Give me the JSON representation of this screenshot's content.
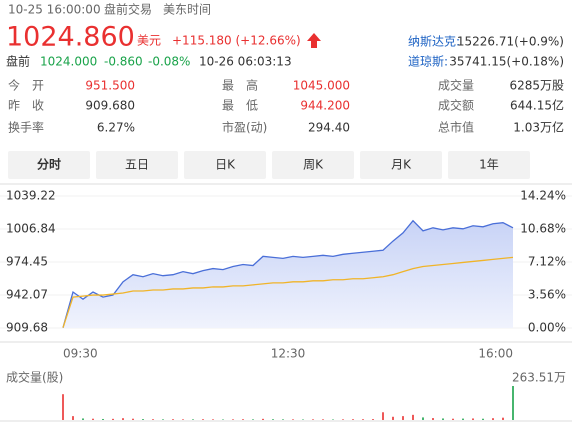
{
  "header": {
    "datetime": "10-25 16:00:00",
    "session": "盘前交易",
    "timezone": "美东时间"
  },
  "quote": {
    "price": "1024.860",
    "currency": "美元",
    "change": "+115.180 (+12.66%)"
  },
  "indices": [
    {
      "label": "纳斯达克:",
      "value": "15226.71(+0.9%)"
    },
    {
      "label": "道琼斯:",
      "value": "35741.15(+0.18%)"
    }
  ],
  "premarket": {
    "label": "盘前",
    "price": "1024.000",
    "change": "-0.860",
    "percent": "-0.08%",
    "time": "10-26 06:03:13"
  },
  "stats": [
    [
      {
        "label": "今　开",
        "value": "951.500",
        "up": true
      },
      {
        "label": "最　高",
        "value": "1045.000",
        "up": true
      },
      {
        "label": "成交量",
        "value": "6285万股"
      }
    ],
    [
      {
        "label": "昨　收",
        "value": "909.680"
      },
      {
        "label": "最　低",
        "value": "944.200",
        "up": true
      },
      {
        "label": "成交额",
        "value": "644.15亿"
      }
    ],
    [
      {
        "label": "换手率",
        "value": "6.27%"
      },
      {
        "label": "市盈(动)",
        "value": "294.40"
      },
      {
        "label": "总市值",
        "value": "1.03万亿"
      }
    ]
  ],
  "tabs": [
    "分时",
    "五日",
    "日K",
    "周K",
    "月K",
    "1年"
  ],
  "selected_tab": 0,
  "chart_data": {
    "type": "line",
    "x_ticks": [
      "09:30",
      "12:30",
      "16:00"
    ],
    "ylim": [
      909.68,
      1039.22
    ],
    "yticks": [
      909.68,
      942.07,
      974.45,
      1006.84,
      1039.22
    ],
    "y2lim": [
      0,
      14.24
    ],
    "y2ticks": [
      {
        "value": 0,
        "label": "0.00%"
      },
      {
        "value": 3.56,
        "label": "3.56%"
      },
      {
        "value": 7.12,
        "label": "7.12%"
      },
      {
        "value": 10.68,
        "label": "10.68%"
      },
      {
        "value": 14.24,
        "label": "14.24%"
      }
    ],
    "series": [
      {
        "color": "#4a6fd8",
        "values": [
          910,
          945,
          938,
          945,
          940,
          942,
          955,
          962,
          960,
          963,
          961,
          962,
          965,
          963,
          966,
          968,
          967,
          970,
          972,
          971,
          980,
          979,
          978,
          980,
          979,
          980,
          981,
          980,
          982,
          983,
          984,
          985,
          986,
          995,
          1003,
          1015,
          1005,
          1008,
          1006,
          1008,
          1007,
          1010,
          1009,
          1012,
          1013,
          1008
        ]
      },
      {
        "color": "#f0b429",
        "values": [
          910,
          940,
          941,
          942,
          942,
          943,
          944,
          946,
          946,
          947,
          947,
          948,
          948,
          949,
          949,
          950,
          950,
          951,
          951,
          952,
          953,
          954,
          954,
          955,
          955,
          956,
          956,
          957,
          957,
          958,
          958,
          959,
          960,
          962,
          965,
          968,
          970,
          971,
          972,
          973,
          974,
          975,
          976,
          977,
          978,
          979
        ]
      }
    ],
    "volume": {
      "label": "成交量(股)",
      "ylim": [
        0,
        263.51
      ],
      "yticks": [
        {
          "value": 263.51,
          "label": "263.51万"
        }
      ],
      "values": [
        200,
        30,
        12,
        10,
        8,
        9,
        14,
        10,
        7,
        6,
        5,
        6,
        5,
        5,
        6,
        5,
        4,
        5,
        6,
        5,
        9,
        6,
        5,
        5,
        4,
        5,
        5,
        4,
        5,
        6,
        6,
        7,
        60,
        25,
        30,
        40,
        20,
        15,
        12,
        10,
        11,
        12,
        10,
        14,
        18,
        263.51
      ]
    }
  }
}
